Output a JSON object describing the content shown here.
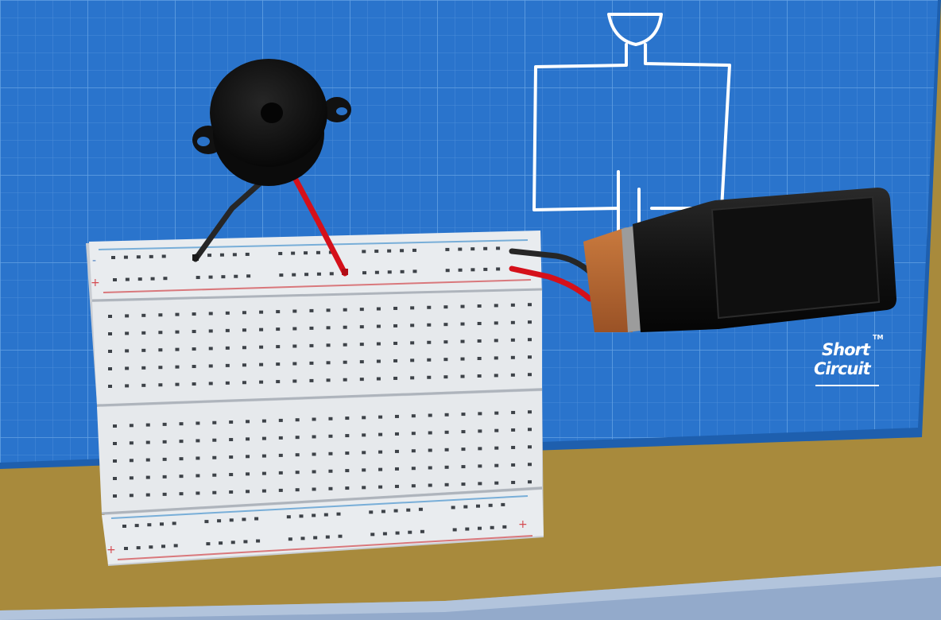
{
  "scene": {
    "colors": {
      "blueprint": "#2a74cc",
      "grid_line": "#5b9be0",
      "desk": "#a88a3c",
      "breadboard": "#e8ebee",
      "rail_blue": "#78aed8",
      "rail_red": "#d9787c",
      "buzzer": "#161616",
      "wire_red": "#d5101a",
      "wire_black": "#262626",
      "battery_body": "#141414",
      "battery_cap": "#b56a32"
    },
    "components": {
      "buzzer": "piezo-buzzer",
      "breadboard": "solderless-breadboard",
      "battery": "9v-battery",
      "schematic": "buzzer-battery-circuit-diagram"
    }
  },
  "logo": {
    "line1": "Short",
    "line2": "Circuit",
    "trademark": "TM"
  },
  "breadboard": {
    "plus_symbol": "+",
    "minus_symbol": "-"
  }
}
